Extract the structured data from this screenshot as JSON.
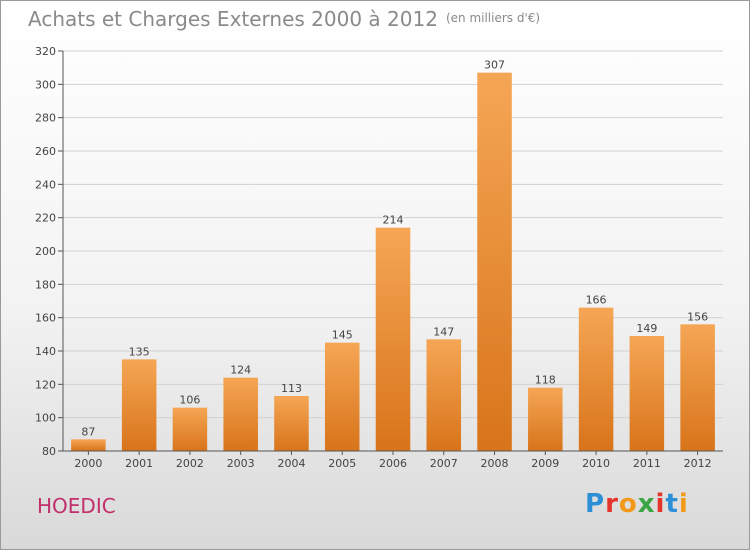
{
  "title": "Achats et Charges Externes 2000 à 2012",
  "subtitle": "(en milliers d'€)",
  "town": "HOEDIC",
  "logo": {
    "text": "Proxiti",
    "letters": [
      "P",
      "r",
      "o",
      "x",
      "i",
      "t",
      "i"
    ],
    "colors": [
      "#2d8fd5",
      "#e4342b",
      "#f29a18",
      "#3aa545",
      "#e4342b",
      "#2d8fd5",
      "#f29a18"
    ]
  },
  "colors": {
    "bar": "#f29a45",
    "axis_text": "#444444",
    "title": "#8a8a8a",
    "town": "#c0306a"
  },
  "chart_data": {
    "type": "bar",
    "title": "Achats et Charges Externes 2000 à 2012",
    "subtitle": "(en milliers d'€)",
    "categories": [
      "2000",
      "2001",
      "2002",
      "2003",
      "2004",
      "2005",
      "2006",
      "2007",
      "2008",
      "2009",
      "2010",
      "2011",
      "2012"
    ],
    "values": [
      87,
      135,
      106,
      124,
      113,
      145,
      214,
      147,
      307,
      118,
      166,
      149,
      156
    ],
    "ylim": [
      80,
      320
    ],
    "yticks": [
      80,
      100,
      120,
      140,
      160,
      180,
      200,
      220,
      240,
      260,
      280,
      300,
      320
    ],
    "grid": true,
    "data_labels": true
  }
}
